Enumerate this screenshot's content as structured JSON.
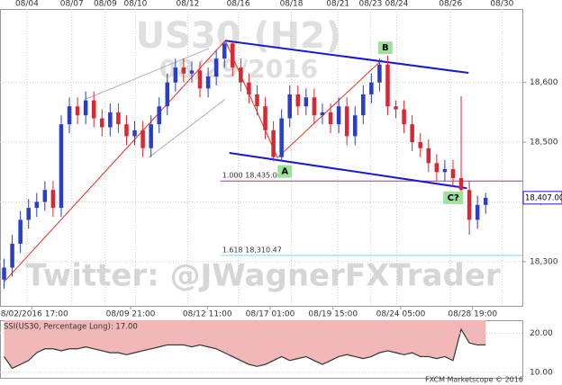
{
  "chart_data": [
    {
      "type": "candlestick",
      "watermark": [
        "US30 (H2)",
        "08/29/2016"
      ],
      "banner": "Twitter: @JWagnerFXTrader",
      "up_color": "#2a3fc4",
      "down_color": "#d42a36",
      "open": [
        18270,
        18290,
        18330,
        18370,
        18390,
        18400,
        18420,
        18390,
        18530,
        18560,
        18545,
        18570,
        18540,
        18525,
        18550,
        18530,
        18510,
        18520,
        18490,
        18530,
        18560,
        18600,
        18625,
        18615,
        18620,
        18590,
        18610,
        18640,
        18665,
        18625,
        18600,
        18580,
        18560,
        18520,
        18475,
        18540,
        18580,
        18560,
        18575,
        18545,
        18550,
        18530,
        18560,
        18510,
        18545,
        18580,
        18600,
        18630,
        18560,
        18555,
        18530,
        18500,
        18490,
        18465,
        18450,
        18455,
        18440,
        18420,
        18370,
        18395
      ],
      "high": [
        18305,
        18345,
        18385,
        18405,
        18415,
        18435,
        18435,
        18545,
        18575,
        18575,
        18585,
        18585,
        18555,
        18565,
        18565,
        18545,
        18535,
        18535,
        18545,
        18575,
        18615,
        18640,
        18640,
        18635,
        18635,
        18625,
        18655,
        18668,
        18668,
        18640,
        18615,
        18595,
        18575,
        18535,
        18555,
        18595,
        18595,
        18590,
        18590,
        18565,
        18565,
        18575,
        18575,
        18560,
        18595,
        18615,
        18640,
        18645,
        18570,
        18570,
        18545,
        18515,
        18505,
        18480,
        18470,
        18470,
        18577,
        18435,
        18410,
        18415
      ],
      "low": [
        18255,
        18275,
        18315,
        18355,
        18375,
        18385,
        18375,
        18375,
        18515,
        18530,
        18530,
        18525,
        18510,
        18510,
        18515,
        18495,
        18495,
        18475,
        18475,
        18515,
        18545,
        18585,
        18600,
        18600,
        18575,
        18575,
        18595,
        18625,
        18610,
        18585,
        18565,
        18545,
        18505,
        18468,
        18468,
        18525,
        18545,
        18545,
        18530,
        18530,
        18515,
        18515,
        18495,
        18495,
        18530,
        18565,
        18585,
        18545,
        18540,
        18515,
        18485,
        18475,
        18450,
        18435,
        18435,
        18425,
        18410,
        18345,
        18355,
        18380
      ],
      "close": [
        18290,
        18330,
        18370,
        18390,
        18400,
        18420,
        18390,
        18530,
        18560,
        18545,
        18570,
        18540,
        18525,
        18550,
        18530,
        18510,
        18520,
        18490,
        18530,
        18560,
        18600,
        18625,
        18615,
        18620,
        18590,
        18610,
        18640,
        18665,
        18625,
        18600,
        18580,
        18560,
        18520,
        18475,
        18540,
        18580,
        18560,
        18575,
        18545,
        18550,
        18530,
        18560,
        18510,
        18545,
        18580,
        18600,
        18630,
        18560,
        18555,
        18530,
        18500,
        18490,
        18465,
        18450,
        18455,
        18440,
        18420,
        18370,
        18395,
        18407
      ],
      "xlim": [
        -0.5,
        63.5
      ],
      "top_xticks": [
        {
          "value": 2.8,
          "label": "08/04"
        },
        {
          "value": 8.3,
          "label": "08/07"
        },
        {
          "value": 12.4,
          "label": "08/09"
        },
        {
          "value": 16.1,
          "label": "08/10"
        },
        {
          "value": 22.5,
          "label": "08/12"
        },
        {
          "value": 28.7,
          "label": "08/16"
        },
        {
          "value": 35.2,
          "label": "08/18"
        },
        {
          "value": 40.9,
          "label": "08/21"
        },
        {
          "value": 44.9,
          "label": "08/23"
        },
        {
          "value": 48.1,
          "label": "08/24"
        },
        {
          "value": 54.7,
          "label": "08/26"
        },
        {
          "value": 61.0,
          "label": "08/30"
        }
      ],
      "xticks": [
        {
          "value": 3.4,
          "label": "08/02/2016 17:00"
        },
        {
          "value": 15.5,
          "label": "08/09 21:00"
        },
        {
          "value": 24.9,
          "label": "08/12 11:00"
        },
        {
          "value": 32.6,
          "label": "08/17 01:00"
        },
        {
          "value": 40.3,
          "label": "08/19 15:00"
        },
        {
          "value": 48.6,
          "label": "08/24 05:00"
        },
        {
          "value": 57.4,
          "label": "08/28 19:00"
        }
      ],
      "ylim": [
        18226,
        18723
      ],
      "yticks": [
        {
          "value": 18300,
          "label": "18,300"
        },
        {
          "value": 18400,
          "label": "18,400"
        },
        {
          "value": 18500,
          "label": "18,500"
        },
        {
          "value": 18600,
          "label": "18,600"
        }
      ],
      "grid": true,
      "last_price": {
        "value": 18407,
        "label": "18,407.00"
      },
      "fib_start": 26.5,
      "fib_levels": [
        {
          "value": 18435,
          "label": "1.000 18,435.00",
          "color": "#8e44ad"
        },
        {
          "value": 18310.47,
          "label": "1.618 18,310.47",
          "color": "#7fd8e8"
        }
      ],
      "trendlines": [
        {
          "color": "#b0b0b0",
          "width": 1,
          "points": [
            [
              10.0,
              18572
            ],
            [
              25.1,
              18657
            ]
          ]
        },
        {
          "color": "#b0b0b0",
          "width": 1,
          "points": [
            [
              17.7,
              18474
            ],
            [
              27.1,
              18572
            ]
          ]
        },
        {
          "color": "#e03020",
          "width": 1,
          "points": [
            [
              0.05,
              18267
            ],
            [
              27.1,
              18670
            ],
            [
              33.5,
              18474
            ],
            [
              46.3,
              18638
            ]
          ]
        },
        {
          "color": "#1a1ad0",
          "width": 2,
          "points": [
            [
              27.1,
              18670
            ],
            [
              56.9,
              18616
            ]
          ]
        },
        {
          "color": "#1a1ad0",
          "width": 2,
          "points": [
            [
              27.6,
              18482
            ],
            [
              56.7,
              18423
            ]
          ]
        }
      ],
      "wave_labels": [
        {
          "label": "A",
          "x": 34.4,
          "y": 18451
        },
        {
          "label": "B",
          "x": 46.7,
          "y": 18658
        },
        {
          "label": "C?",
          "x": 54.7,
          "y": 18407
        }
      ]
    },
    {
      "type": "area",
      "title": "SSI(US30, Percentage Long): 17.00",
      "footer": "FXCM Marketscope © 2016",
      "color": "#f2b8b8",
      "values": [
        14,
        11,
        12,
        13,
        15,
        16,
        16,
        15.5,
        16,
        16,
        16.5,
        16,
        15.5,
        15,
        15,
        14.5,
        15,
        15.5,
        16,
        16.5,
        17,
        17,
        17,
        16.5,
        17,
        16.5,
        16,
        15,
        14,
        13,
        12,
        11.5,
        12,
        13,
        14,
        13,
        13.5,
        14,
        13,
        12,
        13,
        14,
        14.5,
        14,
        13.5,
        14,
        15,
        15.5,
        15,
        14.5,
        15,
        14,
        14,
        13.5,
        14,
        13,
        21,
        17.5,
        17,
        17
      ],
      "xlim": [
        -0.5,
        63.5
      ],
      "ylim": [
        8.57,
        23.33
      ],
      "yticks": [
        {
          "value": 10,
          "label": "10.00"
        },
        {
          "value": 20,
          "label": "20.00"
        }
      ]
    }
  ]
}
